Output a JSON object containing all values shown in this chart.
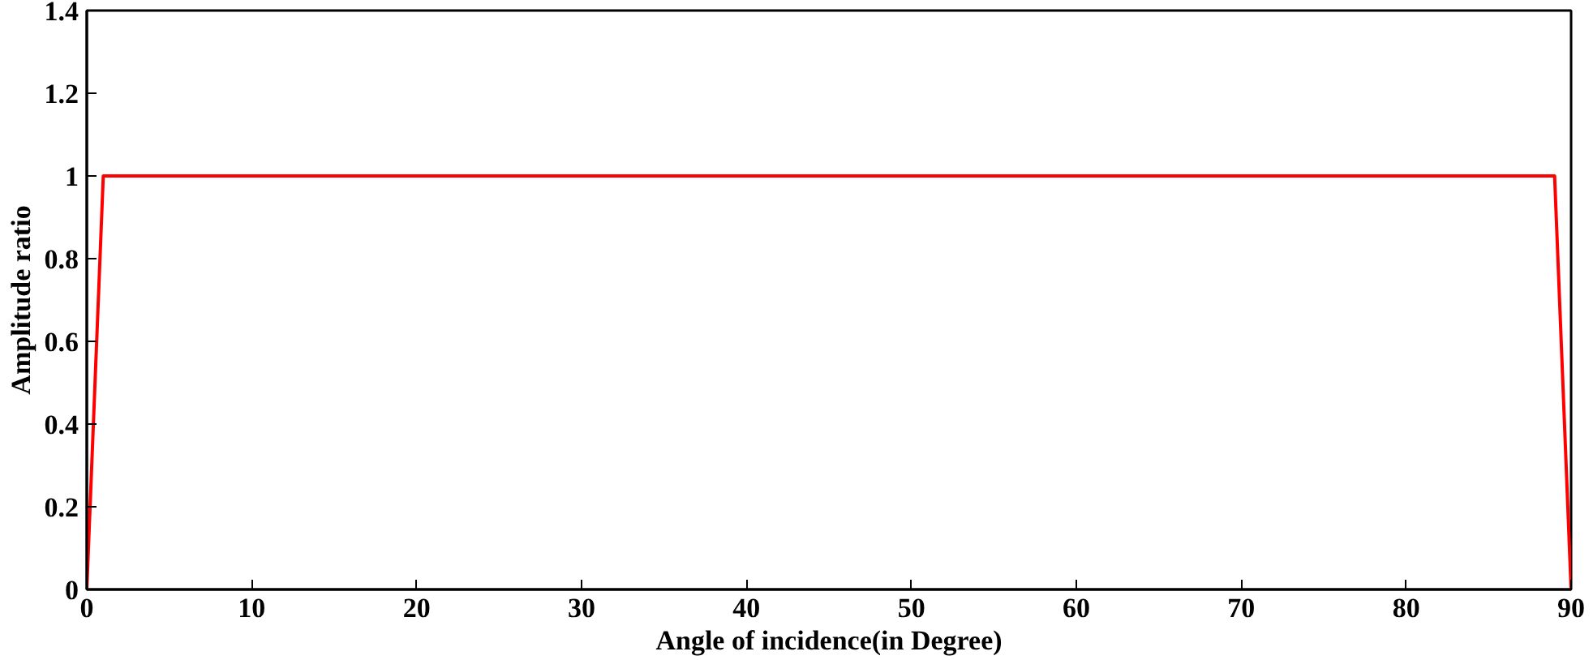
{
  "chart_data": {
    "type": "line",
    "xlabel": "Angle of incidence(in Degree)",
    "ylabel": "Amplitude ratio",
    "x": [
      0,
      1,
      89,
      90
    ],
    "series": [
      {
        "color": "#ff0000",
        "values": [
          0,
          1,
          1,
          0
        ]
      }
    ],
    "xlim": [
      0,
      90
    ],
    "ylim": [
      0,
      1.4
    ],
    "xticks": [
      0,
      10,
      20,
      30,
      40,
      50,
      60,
      70,
      80,
      90
    ],
    "yticks": [
      0,
      0.2,
      0.4,
      0.6,
      0.8,
      1,
      1.2,
      1.4
    ],
    "grid": false,
    "marker": "none",
    "line_style": "solid"
  }
}
